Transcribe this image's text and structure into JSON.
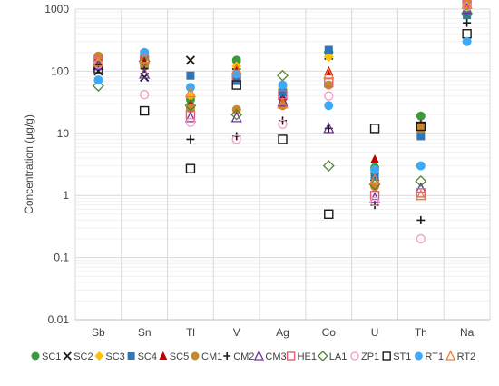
{
  "chart_data": {
    "type": "scatter",
    "ylabel": "Concentration (µg/g)",
    "yscale": "log",
    "ylim": [
      0.01,
      1000
    ],
    "yticks": [
      "0.01",
      "0.1",
      "1",
      "10",
      "100",
      "1000"
    ],
    "grid": "major and minor horizontal lines, vertical category separators",
    "legend_position": "bottom",
    "categories": [
      "Sb",
      "Sn",
      "Tl",
      "V",
      "Ag",
      "Co",
      "U",
      "Th",
      "Na"
    ],
    "series": [
      {
        "name": "SC1",
        "marker": "circle-filled",
        "color": "#3b9a3b",
        "values": [
          160,
          170,
          35,
          150,
          50,
          200,
          2.8,
          19,
          1300
        ]
      },
      {
        "name": "SC2",
        "marker": "cross",
        "color": "#1a1a1a",
        "values": [
          100,
          80,
          150,
          95,
          40,
          180,
          2.0,
          13,
          900
        ]
      },
      {
        "name": "SC3",
        "marker": "diamond-filled",
        "color": "#ffc000",
        "values": [
          145,
          130,
          40,
          120,
          55,
          170,
          2.3,
          11,
          1100
        ]
      },
      {
        "name": "SC4",
        "marker": "square-filled",
        "color": "#2e75b6",
        "values": [
          120,
          190,
          85,
          70,
          45,
          220,
          2.1,
          9,
          800
        ]
      },
      {
        "name": "SC5",
        "marker": "triangle-filled",
        "color": "#c00000",
        "values": [
          170,
          140,
          30,
          110,
          35,
          100,
          3.8,
          14,
          1500
        ]
      },
      {
        "name": "CM1",
        "marker": "circle-filled",
        "color": "#c58a2c",
        "values": [
          175,
          120,
          25,
          24,
          28,
          60,
          1.4,
          12,
          1400
        ]
      },
      {
        "name": "CM2",
        "marker": "plus",
        "color": "#1a1a1a",
        "values": [
          110,
          110,
          8,
          9,
          16,
          12,
          0.7,
          0.4,
          600
        ]
      },
      {
        "name": "CM3",
        "marker": "triangle-open",
        "color": "#7030a0",
        "values": [
          125,
          90,
          18,
          18,
          32,
          12,
          0.9,
          1.3,
          1000
        ]
      },
      {
        "name": "HE1",
        "marker": "square-open",
        "color": "#e0607a",
        "values": [
          150,
          150,
          20,
          80,
          42,
          65,
          1.0,
          1.1,
          1300
        ]
      },
      {
        "name": "LA1",
        "marker": "diamond-open",
        "color": "#548235",
        "values": [
          58,
          145,
          28,
          20,
          85,
          3,
          1.5,
          1.7,
          850
        ]
      },
      {
        "name": "ZP1",
        "marker": "circle-open",
        "color": "#f4a0c8",
        "values": [
          130,
          42,
          15,
          8,
          14,
          40,
          0.8,
          0.2,
          1100
        ]
      },
      {
        "name": "ST1",
        "marker": "square-open",
        "color": "#1a1a1a",
        "values": [
          110,
          23,
          2.7,
          60,
          8,
          0.5,
          12,
          13,
          400
        ]
      },
      {
        "name": "RT1",
        "marker": "circle-filled",
        "color": "#3fa9f5",
        "values": [
          72,
          200,
          55,
          90,
          60,
          28,
          2.6,
          3,
          300
        ]
      },
      {
        "name": "RT2",
        "marker": "triangle-open",
        "color": "#ed7d31",
        "values": [
          140,
          160,
          45,
          105,
          30,
          90,
          1.8,
          1.0,
          1200
        ]
      }
    ]
  }
}
